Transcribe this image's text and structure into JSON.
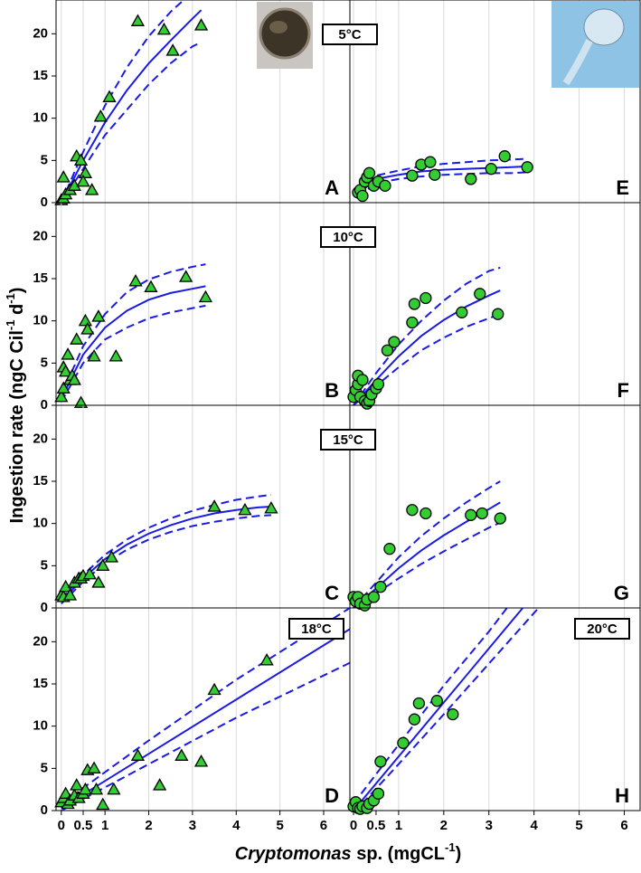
{
  "axis_labels": {
    "y": {
      "text": "Ingestion rate (ngC Cil",
      "sup1": "-1",
      "mid": " d",
      "sup2": "-1",
      "end": ")"
    },
    "x": {
      "italic": "Cryptomonas",
      "text": " sp. (mgCL",
      "sup": "-1",
      "end": ")"
    }
  },
  "chart_data": [
    {
      "type": "scatter",
      "panel_label": "A",
      "temperature": "5°C",
      "xlim": [
        -0.12,
        6.6
      ],
      "ylim": [
        0,
        24
      ],
      "xticks": [
        0,
        0.5,
        1,
        2,
        3,
        4,
        5,
        6
      ],
      "yticks": [
        0,
        5,
        10,
        15,
        20
      ],
      "xtick_labels": false,
      "grid": true,
      "series": [
        {
          "type": "scatter",
          "marker": "triangle",
          "color": "#33cc33",
          "x": [
            0,
            0.05,
            0.1,
            0.05,
            0.2,
            0.3,
            0.35,
            0.45,
            0.55,
            0.5,
            0.7,
            0.9,
            1.1,
            1.75,
            2.35,
            2.55,
            3.2
          ],
          "values": [
            0.3,
            0.5,
            1,
            3,
            1.5,
            2,
            5.5,
            5,
            3.5,
            2.5,
            1.5,
            10.2,
            12.5,
            21.5,
            20.5,
            18,
            21
          ]
        },
        {
          "type": "line",
          "style": "solid",
          "color": "#1a1ae6",
          "x": [
            0,
            0.5,
            1,
            1.5,
            2,
            2.5,
            3,
            3.2
          ],
          "values": [
            0,
            5,
            9.5,
            13.3,
            16.5,
            19.2,
            21.8,
            22.8
          ]
        },
        {
          "type": "line",
          "style": "dashed",
          "color": "#1a1ae6",
          "x": [
            0,
            0.5,
            1,
            1.5,
            2,
            2.5,
            2.8
          ],
          "values": [
            0,
            6,
            11.5,
            16,
            19.7,
            22.6,
            24
          ]
        },
        {
          "type": "line",
          "style": "dashed",
          "color": "#1a1ae6",
          "x": [
            0,
            0.5,
            1,
            1.5,
            2,
            2.5,
            3,
            3.2
          ],
          "values": [
            0,
            4,
            8,
            11,
            14,
            16.5,
            18.5,
            19
          ]
        }
      ]
    },
    {
      "type": "scatter",
      "panel_label": "E",
      "xlim": [
        -0.08,
        6.35
      ],
      "ylim": [
        0,
        24
      ],
      "xticks": [
        0,
        0.5,
        1,
        2,
        3,
        4,
        5,
        6
      ],
      "xtick_labels": false,
      "grid": true,
      "series": [
        {
          "type": "scatter",
          "marker": "circle",
          "color": "#33cc33",
          "x": [
            0.1,
            0.15,
            0.2,
            0.25,
            0.3,
            0.35,
            0.45,
            0.55,
            0.7,
            1.3,
            1.5,
            1.7,
            1.8,
            2.6,
            3.05,
            3.35,
            3.85
          ],
          "values": [
            1.2,
            1.5,
            0.8,
            2.5,
            3,
            3.5,
            2,
            2.5,
            2,
            3.2,
            4.5,
            4.8,
            3.3,
            2.8,
            4,
            5.5,
            4.2
          ]
        },
        {
          "type": "line",
          "style": "solid",
          "color": "#1a1ae6",
          "x": [
            0.1,
            0.5,
            1,
            1.5,
            2,
            2.5,
            3,
            3.5,
            3.85
          ],
          "values": [
            1,
            2.8,
            3.3,
            3.7,
            3.9,
            4,
            4.1,
            4.2,
            4.3
          ]
        },
        {
          "type": "line",
          "style": "dashed",
          "color": "#1a1ae6",
          "x": [
            0.1,
            0.5,
            1,
            1.5,
            2,
            2.5,
            3,
            3.5,
            3.85
          ],
          "values": [
            1.3,
            3.2,
            3.8,
            4.3,
            4.6,
            4.8,
            5,
            5.1,
            5.2
          ]
        },
        {
          "type": "line",
          "style": "dashed",
          "color": "#1a1ae6",
          "x": [
            0.1,
            0.5,
            1,
            1.5,
            2,
            2.5,
            3,
            3.5,
            3.85
          ],
          "values": [
            0.7,
            2.3,
            2.8,
            3.1,
            3.3,
            3.4,
            3.5,
            3.5,
            3.6
          ]
        }
      ]
    },
    {
      "type": "scatter",
      "panel_label": "B",
      "temperature": "10°C",
      "xlim": [
        -0.12,
        6.6
      ],
      "ylim": [
        0,
        24
      ],
      "xticks": [
        0,
        0.5,
        1,
        2,
        3,
        4,
        5,
        6
      ],
      "yticks": [
        0,
        5,
        10,
        15,
        20
      ],
      "xtick_labels": false,
      "grid": true,
      "series": [
        {
          "type": "scatter",
          "marker": "triangle",
          "color": "#33cc33",
          "x": [
            0,
            0.05,
            0.05,
            0.1,
            0.15,
            0.2,
            0.25,
            0.3,
            0.35,
            0.45,
            0.55,
            0.6,
            0.75,
            0.85,
            1.25,
            1.7,
            2.05,
            2.85,
            3.3
          ],
          "values": [
            1,
            2,
            4.5,
            4,
            6,
            3,
            3.5,
            3,
            7.8,
            0.3,
            10,
            9,
            5.8,
            10.5,
            5.8,
            14.7,
            14,
            15.2,
            12.8
          ]
        },
        {
          "type": "line",
          "style": "solid",
          "color": "#1a1ae6",
          "x": [
            0,
            0.5,
            1,
            1.5,
            2,
            2.5,
            3,
            3.3
          ],
          "values": [
            0.8,
            6,
            9.2,
            11.2,
            12.5,
            13.3,
            13.8,
            14.1
          ]
        },
        {
          "type": "line",
          "style": "dashed",
          "color": "#1a1ae6",
          "x": [
            0,
            0.5,
            1,
            1.5,
            2,
            2.5,
            3,
            3.3
          ],
          "values": [
            1.2,
            7,
            10.8,
            13.4,
            14.9,
            15.8,
            16.4,
            16.7
          ]
        },
        {
          "type": "line",
          "style": "dashed",
          "color": "#1a1ae6",
          "x": [
            0,
            0.5,
            1,
            1.5,
            2,
            2.5,
            3,
            3.3
          ],
          "values": [
            0.4,
            5,
            7.8,
            9.2,
            10.3,
            11,
            11.5,
            11.8
          ]
        }
      ]
    },
    {
      "type": "scatter",
      "panel_label": "F",
      "xlim": [
        -0.08,
        6.35
      ],
      "ylim": [
        0,
        24
      ],
      "xticks": [
        0,
        0.5,
        1,
        2,
        3,
        4,
        5,
        6
      ],
      "xtick_labels": false,
      "grid": true,
      "series": [
        {
          "type": "scatter",
          "marker": "circle",
          "color": "#33cc33",
          "x": [
            0,
            0.05,
            0.1,
            0.1,
            0.15,
            0.2,
            0.25,
            0.3,
            0.35,
            0.4,
            0.5,
            0.55,
            0.75,
            0.9,
            1.3,
            1.35,
            1.6,
            2.4,
            2.8,
            3.2
          ],
          "values": [
            1,
            1.8,
            2.5,
            3.5,
            1,
            3,
            0.5,
            0.2,
            0.5,
            1.3,
            2,
            2.5,
            6.5,
            7.5,
            9.8,
            12,
            12.7,
            11,
            13.2,
            10.8
          ]
        },
        {
          "type": "line",
          "style": "solid",
          "color": "#1a1ae6",
          "x": [
            0,
            0.5,
            1,
            1.5,
            2,
            2.5,
            3,
            3.25
          ],
          "values": [
            0,
            3,
            5.8,
            8.2,
            10.1,
            11.7,
            13,
            13.6
          ]
        },
        {
          "type": "line",
          "style": "dashed",
          "color": "#1a1ae6",
          "x": [
            0,
            0.5,
            1,
            1.5,
            2,
            2.5,
            3,
            3.25
          ],
          "values": [
            0,
            3.8,
            7.2,
            10,
            12.4,
            14.4,
            15.9,
            16.3
          ]
        },
        {
          "type": "line",
          "style": "dashed",
          "color": "#1a1ae6",
          "x": [
            0,
            0.5,
            1,
            1.5,
            2,
            2.5,
            3,
            3.25
          ],
          "values": [
            0,
            2.3,
            4.5,
            6.5,
            8,
            9.3,
            10.3,
            10.8
          ]
        }
      ]
    },
    {
      "type": "scatter",
      "panel_label": "C",
      "temperature": "15°C",
      "xlim": [
        -0.12,
        6.6
      ],
      "ylim": [
        0,
        24
      ],
      "xticks": [
        0,
        0.5,
        1,
        2,
        3,
        4,
        5,
        6
      ],
      "yticks": [
        0,
        5,
        10,
        15,
        20
      ],
      "xtick_labels": false,
      "grid": true,
      "series": [
        {
          "type": "scatter",
          "marker": "triangle",
          "color": "#33cc33",
          "x": [
            0,
            0.05,
            0.1,
            0.2,
            0.3,
            0.4,
            0.45,
            0.5,
            0.65,
            0.85,
            0.95,
            1.15,
            3.5,
            4.2,
            4.8
          ],
          "values": [
            1.5,
            1.3,
            2.5,
            1.5,
            3,
            3.5,
            3.5,
            3.8,
            4,
            3,
            5,
            6,
            12,
            11.6,
            11.8
          ]
        },
        {
          "type": "line",
          "style": "solid",
          "color": "#1a1ae6",
          "x": [
            0,
            0.5,
            1,
            1.5,
            2,
            2.5,
            3,
            3.5,
            4,
            4.5,
            4.8
          ],
          "values": [
            0.8,
            3.5,
            5.8,
            7.5,
            8.8,
            9.8,
            10.6,
            11.2,
            11.6,
            11.9,
            12
          ]
        },
        {
          "type": "line",
          "style": "dashed",
          "color": "#1a1ae6",
          "x": [
            0,
            0.5,
            1,
            1.5,
            2,
            2.5,
            3,
            3.5,
            4,
            4.5,
            4.8
          ],
          "values": [
            1.1,
            3.9,
            6.3,
            8.1,
            9.5,
            10.6,
            11.5,
            12.2,
            12.8,
            13.2,
            13.4
          ]
        },
        {
          "type": "line",
          "style": "dashed",
          "color": "#1a1ae6",
          "x": [
            0,
            0.5,
            1,
            1.5,
            2,
            2.5,
            3,
            3.5,
            4,
            4.5,
            4.8
          ],
          "values": [
            0.5,
            3.1,
            5.3,
            6.9,
            8.1,
            9,
            9.7,
            10.2,
            10.6,
            10.9,
            11
          ]
        }
      ]
    },
    {
      "type": "scatter",
      "panel_label": "G",
      "xlim": [
        -0.08,
        6.35
      ],
      "ylim": [
        0,
        24
      ],
      "xticks": [
        0,
        0.5,
        1,
        2,
        3,
        4,
        5,
        6
      ],
      "xtick_labels": false,
      "grid": true,
      "series": [
        {
          "type": "scatter",
          "marker": "circle",
          "color": "#33cc33",
          "x": [
            0,
            0.05,
            0.1,
            0.15,
            0.25,
            0.3,
            0.45,
            0.6,
            0.8,
            1.3,
            1.6,
            2.6,
            2.85,
            3.25
          ],
          "values": [
            1.3,
            0.8,
            1.3,
            0.5,
            0.3,
            1,
            1.3,
            2.5,
            7,
            11.6,
            11.2,
            11,
            11.2,
            10.6
          ]
        },
        {
          "type": "line",
          "style": "solid",
          "color": "#1a1ae6",
          "x": [
            0,
            0.5,
            1,
            1.5,
            2,
            2.5,
            3,
            3.25
          ],
          "values": [
            0,
            2.3,
            4.7,
            6.8,
            8.6,
            10.2,
            11.7,
            12.5
          ]
        },
        {
          "type": "line",
          "style": "dashed",
          "color": "#1a1ae6",
          "x": [
            0,
            0.5,
            1,
            1.5,
            2,
            2.5,
            3,
            3.25
          ],
          "values": [
            0,
            3,
            6,
            8.5,
            10.6,
            12.5,
            14.2,
            15
          ]
        },
        {
          "type": "line",
          "style": "dashed",
          "color": "#1a1ae6",
          "x": [
            0,
            0.5,
            1,
            1.5,
            2,
            2.5,
            3,
            3.25
          ],
          "values": [
            0,
            1.7,
            3.5,
            5.2,
            6.7,
            8.1,
            9.5,
            10.1
          ]
        }
      ]
    },
    {
      "type": "scatter",
      "panel_label": "D",
      "temperature": "18°C",
      "xlim": [
        -0.12,
        6.6
      ],
      "ylim": [
        0,
        24
      ],
      "xticks": [
        0,
        0.5,
        1,
        2,
        3,
        4,
        5,
        6
      ],
      "yticks": [
        0,
        5,
        10,
        15,
        20
      ],
      "xtick_labels": true,
      "grid": true,
      "series": [
        {
          "type": "scatter",
          "marker": "triangle",
          "color": "#33cc33",
          "x": [
            0,
            0.05,
            0.1,
            0.15,
            0.2,
            0.3,
            0.35,
            0.4,
            0.5,
            0.55,
            0.6,
            0.75,
            0.8,
            0.95,
            1.2,
            1.75,
            2.25,
            2.75,
            3.2,
            3.5,
            4.7
          ],
          "values": [
            1,
            1.5,
            2,
            0.8,
            1.2,
            1.8,
            3,
            1.5,
            2,
            2.5,
            4.8,
            5,
            2.5,
            0.7,
            2.5,
            6.5,
            3,
            6.5,
            5.8,
            14.3,
            17.8
          ]
        },
        {
          "type": "line",
          "style": "solid",
          "color": "#1a1ae6",
          "x": [
            0,
            6.6
          ],
          "values": [
            0.3,
            21.5
          ]
        },
        {
          "type": "line",
          "style": "dashed",
          "color": "#1a1ae6",
          "x": [
            0,
            2,
            4,
            6.6
          ],
          "values": [
            0.8,
            8.3,
            15.5,
            24
          ]
        },
        {
          "type": "line",
          "style": "dashed",
          "color": "#1a1ae6",
          "x": [
            0,
            2,
            4,
            6.6
          ],
          "values": [
            0,
            5.5,
            11,
            17.5
          ]
        }
      ]
    },
    {
      "type": "scatter",
      "panel_label": "H",
      "temperature": "20°C",
      "xlim": [
        -0.08,
        6.35
      ],
      "ylim": [
        0,
        24
      ],
      "xticks": [
        0,
        0.5,
        1,
        2,
        3,
        4,
        5,
        6
      ],
      "xtick_labels": true,
      "grid": true,
      "series": [
        {
          "type": "scatter",
          "marker": "circle",
          "color": "#33cc33",
          "x": [
            0,
            0.05,
            0.1,
            0.15,
            0.2,
            0.3,
            0.35,
            0.45,
            0.55,
            0.6,
            1.1,
            1.35,
            1.45,
            1.85,
            2.2
          ],
          "values": [
            0.5,
            1,
            0.3,
            0.2,
            0.5,
            0.3,
            0.8,
            1.2,
            2,
            5.8,
            8,
            10.8,
            12.7,
            13,
            11.4
          ]
        },
        {
          "type": "line",
          "style": "solid",
          "color": "#1a1ae6",
          "x": [
            0,
            3.75
          ],
          "values": [
            0,
            24
          ]
        },
        {
          "type": "line",
          "style": "dashed",
          "color": "#1a1ae6",
          "x": [
            0,
            1,
            2,
            3,
            3.4
          ],
          "values": [
            0.8,
            7.8,
            14.8,
            21.2,
            24
          ]
        },
        {
          "type": "line",
          "style": "dashed",
          "color": "#1a1ae6",
          "x": [
            0,
            1,
            2,
            3,
            4.1
          ],
          "values": [
            -0.3,
            5.5,
            11.4,
            17.4,
            24
          ]
        }
      ]
    }
  ]
}
